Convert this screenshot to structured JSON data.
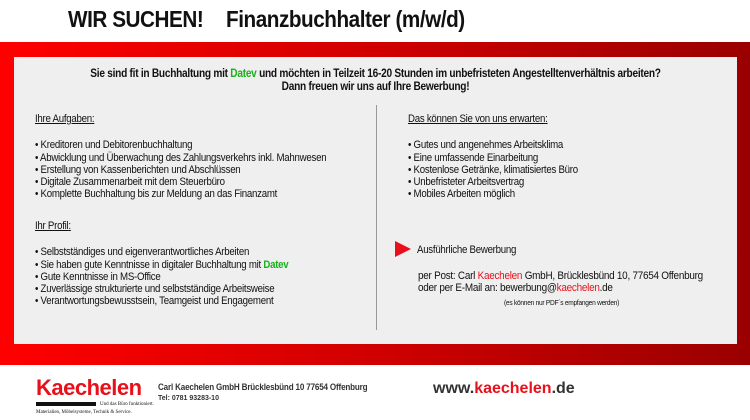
{
  "header": {
    "title_left": "WIR SUCHEN!",
    "title_right": "Finanzbuchhalter (m/w/d)"
  },
  "intro": {
    "line1_a": "Sie sind fit in Buchhaltung mit ",
    "line1_datev": "Datev",
    "line1_b": " und möchten in Teilzeit 16-20 Stunden im unbefristeten Angestelltenverhältnis arbeiten?",
    "line2": "Dann freuen wir uns auf Ihre Bewerbung!"
  },
  "aufgaben": {
    "heading": "Ihre Aufgaben",
    "colon": ":",
    "items": [
      "Kreditoren und Debitorenbuchhaltung",
      "Abwicklung und Überwachung des Zahlungsverkehrs inkl. Mahnwesen",
      "Erstellung von Kassenberichten und Abschlüssen",
      "Digitale Zusammenarbeit mit dem Steuerbüro",
      "Komplette Buchhaltung bis zur Meldung an das Finanzamt"
    ]
  },
  "profil": {
    "heading": "Ihr Profil",
    "colon": ":",
    "items": [
      "Selbstständiges und eigenverantwortliches Arbeiten",
      "Sie haben gute Kenntnisse in digitaler Buchhaltung mit ",
      "Gute Kenntnisse in MS-Office",
      "Zuverlässige strukturierte und selbstständige Arbeitsweise",
      "Verantwortungsbewusstsein, Teamgeist und Engagement"
    ],
    "datev": "Datev"
  },
  "angebot": {
    "heading": "Das können Sie von uns erwarten",
    "colon": ":",
    "items": [
      "Gutes und angenehmes Arbeitsklima",
      "Eine umfassende Einarbeitung",
      "Kostenlose Getränke, klimatisiertes Büro",
      "Unbefristeter Arbeitsvertrag",
      "Mobiles Arbeiten möglich"
    ]
  },
  "bewerbung": {
    "heading": "Ausführliche Bewerbung",
    "post_a": "per Post: Carl ",
    "post_name": "Kaechelen",
    "post_b": " GmbH, Brücklesbünd 10, 77654 Offenburg",
    "mail_a": "oder per E-Mail an: bewerbung@",
    "mail_name": "kaechelen",
    "mail_b": ".de",
    "note": "(es können nur PDF´s empfangen werden)"
  },
  "footer": {
    "logo": "Kaechelen",
    "slogan1": "Und das Büro funktioniert.",
    "slogan2": "Materialien, Möbelsysteme, Technik & Service.",
    "address": "Carl Kaechelen GmbH Brücklesbünd 10 77654 Offenburg",
    "tel": "Tel: 0781 93283-10",
    "www_a": "www.",
    "www_b": "kaechelen",
    "www_c": ".de"
  },
  "colors": {
    "accent": "#e8101a",
    "datev": "#1ab01a",
    "panel": "#efefef"
  }
}
